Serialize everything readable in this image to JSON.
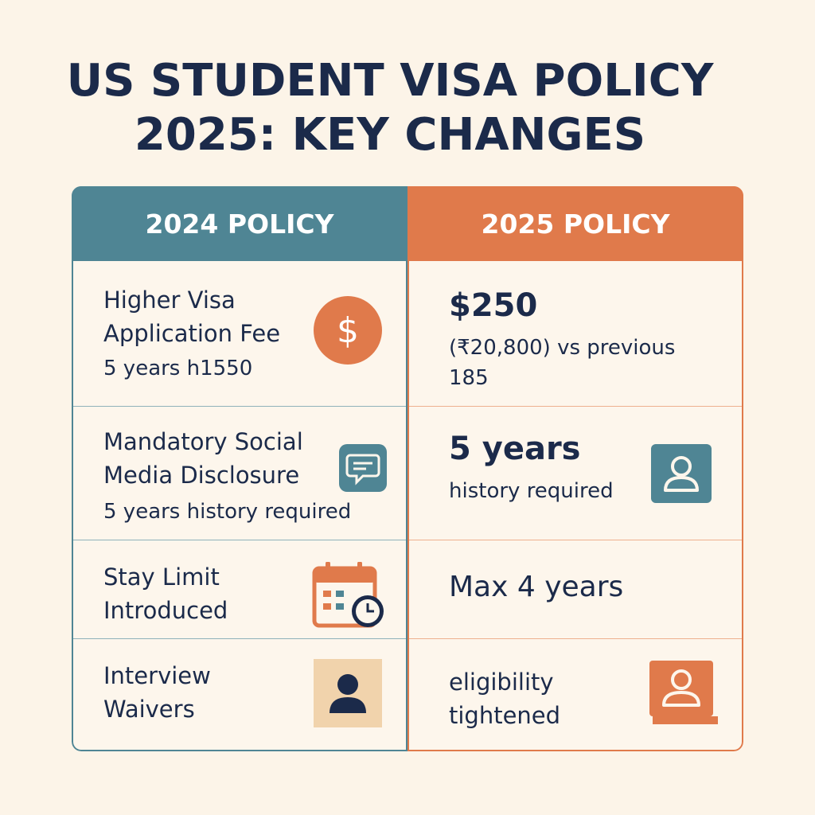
{
  "title": {
    "line1": "US STUDENT VISA POLICY",
    "line2": "2025: KEY CHANGES"
  },
  "table": {
    "headers": {
      "left": "2024 POLICY",
      "right": "2025 POLICY"
    },
    "rows": [
      {
        "left": {
          "title_line1": "Higher Visa",
          "title_line2": "Application Fee",
          "sub": "5 years h1550",
          "icon": "dollar-icon"
        },
        "right": {
          "headline": "$250",
          "line1": "(₹20,800) vs previous",
          "line2": "185"
        }
      },
      {
        "left": {
          "title_line1": "Mandatory Social",
          "title_line2": "Media Disclosure",
          "sub": "5 years history required",
          "icon": "chat-bubble-icon"
        },
        "right": {
          "headline": "5 years",
          "line1": "history required",
          "icon": "user-icon"
        }
      },
      {
        "left": {
          "title_line1": "Stay Limit",
          "title_line2": "Introduced",
          "icon": "calendar-clock-icon"
        },
        "right": {
          "headline": "Max 4 years"
        }
      },
      {
        "left": {
          "title_line1": "Interview",
          "title_line2": "Waivers",
          "icon": "person-icon"
        },
        "right": {
          "line1": "eligibility",
          "line2": "tightened",
          "icon": "person-card-icon"
        }
      }
    ]
  },
  "colors": {
    "teal": "#4f8594",
    "orange": "#e07a4b",
    "navy": "#1b2a4a",
    "background": "#fcf4e8",
    "tan": "#f1d3ac"
  }
}
